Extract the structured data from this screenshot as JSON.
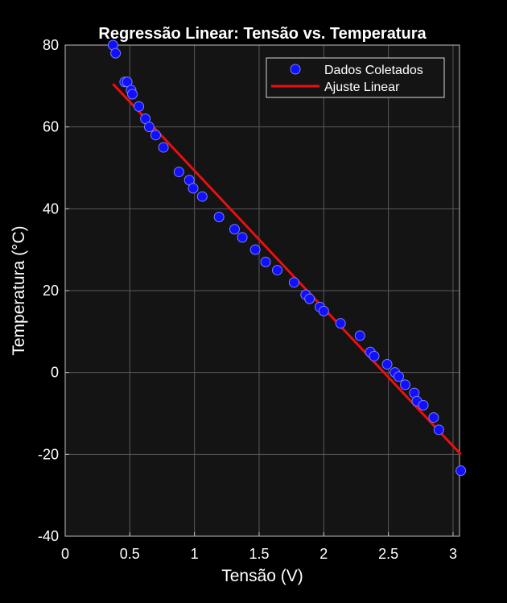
{
  "chart_data": {
    "type": "scatter",
    "title": "Regressão Linear: Tensão vs. Temperatura",
    "xlabel": "Tensão (V)",
    "ylabel": "Temperatura (°C)",
    "xlim": [
      0,
      3.05
    ],
    "ylim": [
      -40,
      80
    ],
    "xticks": [
      0,
      0.5,
      1,
      1.5,
      2,
      2.5,
      3
    ],
    "xtick_labels": [
      "0",
      "0.5",
      "1",
      "1.5",
      "2",
      "2.5",
      "3"
    ],
    "yticks": [
      -40,
      -20,
      0,
      20,
      40,
      60,
      80
    ],
    "ytick_labels": [
      "-40",
      "-20",
      "0",
      "20",
      "40",
      "60",
      "80"
    ],
    "grid": true,
    "legend_position": "top-right",
    "colors": {
      "background": "#000000",
      "plot_background": "#141414",
      "points": "#1010ff",
      "fit_line": "#e81010",
      "grid": "#5a5a5a",
      "text": "#ffffff"
    },
    "series": [
      {
        "name": "Dados Coletados",
        "type": "scatter",
        "x": [
          0.37,
          0.39,
          0.46,
          0.48,
          0.51,
          0.52,
          0.57,
          0.62,
          0.65,
          0.7,
          0.76,
          0.88,
          0.96,
          0.99,
          1.06,
          1.19,
          1.31,
          1.37,
          1.47,
          1.55,
          1.64,
          1.77,
          1.86,
          1.89,
          1.97,
          2.0,
          2.13,
          2.28,
          2.36,
          2.39,
          2.49,
          2.55,
          2.58,
          2.63,
          2.7,
          2.72,
          2.77,
          2.85,
          2.89,
          3.06
        ],
        "y": [
          80,
          78,
          71,
          71,
          69,
          68,
          65,
          62,
          60,
          58,
          55,
          49,
          47,
          45,
          43,
          38,
          35,
          33,
          30,
          27,
          25,
          22,
          19,
          18,
          16,
          15,
          12,
          9,
          5,
          4,
          2,
          0,
          -1,
          -3,
          -5,
          -7,
          -8,
          -11,
          -14,
          -24
        ]
      },
      {
        "name": "Ajuste Linear",
        "type": "line",
        "x": [
          0.37,
          3.06
        ],
        "y": [
          70.5,
          -20
        ]
      }
    ]
  }
}
